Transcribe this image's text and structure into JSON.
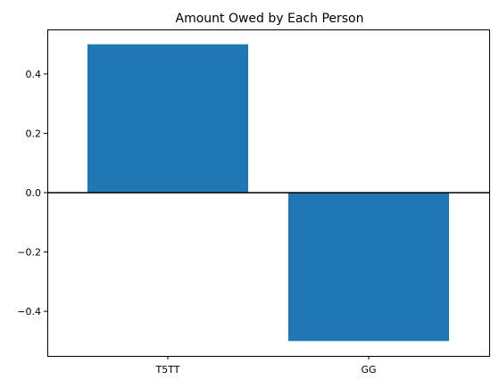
{
  "chart_data": {
    "type": "bar",
    "title": "Amount Owed by Each Person",
    "xlabel": "",
    "ylabel": "",
    "categories": [
      "T5TT",
      "GG"
    ],
    "values": [
      0.5,
      -0.5
    ],
    "ylim": [
      -0.55,
      0.55
    ],
    "yticks": [
      -0.4,
      -0.2,
      0.0,
      0.2,
      0.4
    ],
    "ytick_labels": [
      "−0.4",
      "−0.2",
      "0.0",
      "0.2",
      "0.4"
    ],
    "bar_color": "#1f77b4",
    "zero_line_color": "#000000",
    "grid": false,
    "legend": "none"
  }
}
